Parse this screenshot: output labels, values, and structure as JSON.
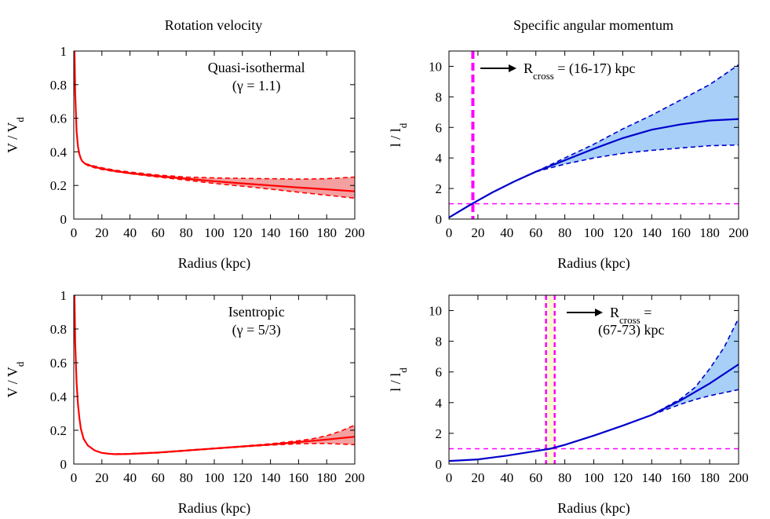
{
  "column_titles": [
    "Rotation velocity",
    "Specific angular momentum"
  ],
  "colors": {
    "velocity_line": "#ff0000",
    "velocity_band": "#f4a0a0",
    "momentum_line": "#0000cc",
    "momentum_band": "#a7cff7",
    "marker": "#ff00ff",
    "crossing_band": "#fafad2"
  },
  "chart_data": [
    {
      "type": "line",
      "title": "",
      "xlabel": "Radius (kpc)",
      "ylabel": "V / V",
      "ylabel_sub": "d",
      "xlim": [
        0,
        200
      ],
      "ylim": [
        0,
        1
      ],
      "xticks": [
        "0",
        "20",
        "40",
        "60",
        "80",
        "100",
        "120",
        "140",
        "160",
        "180",
        "200"
      ],
      "yticks": [
        "0",
        "0.2",
        "0.4",
        "0.6",
        "0.8",
        "1"
      ],
      "grid": false,
      "annotation": [
        "Quasi-isothermal",
        "(γ = 1.1)"
      ],
      "series": [
        {
          "role": "central",
          "x": [
            0.5,
            1,
            2,
            3,
            4,
            5,
            6,
            8,
            10,
            15,
            20,
            30,
            40,
            60,
            80,
            100,
            120,
            140,
            160,
            180,
            200
          ],
          "y": [
            1.0,
            0.75,
            0.52,
            0.43,
            0.385,
            0.36,
            0.345,
            0.33,
            0.322,
            0.31,
            0.3,
            0.285,
            0.273,
            0.255,
            0.24,
            0.225,
            0.212,
            0.2,
            0.188,
            0.177,
            0.165
          ]
        },
        {
          "role": "upper",
          "x": [
            8,
            10,
            15,
            20,
            30,
            40,
            60,
            80,
            100,
            120,
            140,
            160,
            180,
            200
          ],
          "y": [
            0.33,
            0.326,
            0.315,
            0.305,
            0.29,
            0.28,
            0.262,
            0.25,
            0.245,
            0.242,
            0.24,
            0.238,
            0.24,
            0.25
          ]
        },
        {
          "role": "lower",
          "x": [
            8,
            10,
            15,
            20,
            30,
            40,
            60,
            80,
            100,
            120,
            140,
            160,
            180,
            200
          ],
          "y": [
            0.33,
            0.318,
            0.305,
            0.295,
            0.282,
            0.27,
            0.25,
            0.232,
            0.212,
            0.196,
            0.178,
            0.16,
            0.142,
            0.125
          ]
        }
      ]
    },
    {
      "type": "line",
      "title": "",
      "xlabel": "Radius (kpc)",
      "ylabel": "l / l",
      "ylabel_sub": "d",
      "xlim": [
        0,
        200
      ],
      "ylim": [
        0,
        11
      ],
      "xticks": [
        "0",
        "20",
        "40",
        "60",
        "80",
        "100",
        "120",
        "140",
        "160",
        "180",
        "200"
      ],
      "yticks": [
        "0",
        "2",
        "4",
        "6",
        "8",
        "10"
      ],
      "grid": false,
      "annotation": [
        "R",
        "cross",
        " = (16-17) kpc"
      ],
      "reference_y": 1,
      "crossing_x": [
        16,
        17
      ],
      "series": [
        {
          "role": "central",
          "x": [
            0,
            15,
            30,
            45,
            60,
            80,
            100,
            120,
            140,
            160,
            180,
            200
          ],
          "y": [
            0.1,
            0.95,
            1.75,
            2.45,
            3.1,
            3.85,
            4.6,
            5.3,
            5.85,
            6.2,
            6.45,
            6.55
          ]
        },
        {
          "role": "upper",
          "x": [
            60,
            80,
            100,
            120,
            140,
            160,
            180,
            200
          ],
          "y": [
            3.1,
            4.0,
            4.9,
            5.9,
            6.8,
            7.8,
            8.8,
            10.1
          ]
        },
        {
          "role": "lower",
          "x": [
            60,
            80,
            100,
            120,
            140,
            160,
            180,
            200
          ],
          "y": [
            3.1,
            3.6,
            4.0,
            4.3,
            4.5,
            4.65,
            4.8,
            4.85
          ]
        }
      ]
    },
    {
      "type": "line",
      "title": "",
      "xlabel": "Radius (kpc)",
      "ylabel": "V / V",
      "ylabel_sub": "d",
      "xlim": [
        0,
        200
      ],
      "ylim": [
        0,
        1
      ],
      "xticks": [
        "0",
        "20",
        "40",
        "60",
        "80",
        "100",
        "120",
        "140",
        "160",
        "180",
        "200"
      ],
      "yticks": [
        "0",
        "0.2",
        "0.4",
        "0.6",
        "0.8",
        "1"
      ],
      "grid": false,
      "annotation": [
        "Isentropic",
        "(γ = 5/3)"
      ],
      "series": [
        {
          "role": "central",
          "x": [
            0.5,
            1,
            2,
            3,
            4,
            5,
            7,
            10,
            15,
            20,
            25,
            30,
            40,
            60,
            80,
            100,
            120,
            140,
            160,
            180,
            200
          ],
          "y": [
            1.0,
            0.72,
            0.48,
            0.35,
            0.27,
            0.21,
            0.15,
            0.11,
            0.08,
            0.066,
            0.061,
            0.058,
            0.06,
            0.068,
            0.08,
            0.092,
            0.104,
            0.116,
            0.13,
            0.145,
            0.162
          ]
        },
        {
          "role": "upper",
          "x": [
            30,
            40,
            60,
            80,
            100,
            120,
            140,
            160,
            170,
            180,
            190,
            200
          ],
          "y": [
            0.06,
            0.062,
            0.07,
            0.082,
            0.094,
            0.106,
            0.12,
            0.138,
            0.15,
            0.168,
            0.195,
            0.23
          ]
        },
        {
          "role": "lower",
          "x": [
            30,
            40,
            60,
            80,
            100,
            120,
            140,
            160,
            170,
            180,
            190,
            200
          ],
          "y": [
            0.058,
            0.059,
            0.066,
            0.078,
            0.09,
            0.102,
            0.112,
            0.12,
            0.122,
            0.122,
            0.118,
            0.115
          ]
        }
      ]
    },
    {
      "type": "line",
      "title": "",
      "xlabel": "Radius (kpc)",
      "ylabel": "l / l",
      "ylabel_sub": "d",
      "xlim": [
        0,
        200
      ],
      "ylim": [
        0,
        11
      ],
      "xticks": [
        "0",
        "20",
        "40",
        "60",
        "80",
        "100",
        "120",
        "140",
        "160",
        "180",
        "200"
      ],
      "yticks": [
        "0",
        "2",
        "4",
        "6",
        "8",
        "10"
      ],
      "grid": false,
      "annotation": [
        "R",
        "cross",
        " =",
        "(67-73) kpc"
      ],
      "reference_y": 1,
      "crossing_x": [
        67,
        73
      ],
      "series": [
        {
          "role": "central",
          "x": [
            0,
            20,
            40,
            60,
            70,
            80,
            100,
            120,
            140,
            160,
            180,
            200
          ],
          "y": [
            0.2,
            0.3,
            0.55,
            0.85,
            1.0,
            1.25,
            1.85,
            2.5,
            3.2,
            4.15,
            5.25,
            6.5
          ]
        },
        {
          "role": "upper",
          "x": [
            140,
            160,
            170,
            180,
            190,
            200
          ],
          "y": [
            3.2,
            4.25,
            5.0,
            6.2,
            7.6,
            9.5
          ]
        },
        {
          "role": "lower",
          "x": [
            140,
            160,
            170,
            180,
            190,
            200
          ],
          "y": [
            3.2,
            3.9,
            4.2,
            4.45,
            4.65,
            4.85
          ]
        }
      ]
    }
  ]
}
